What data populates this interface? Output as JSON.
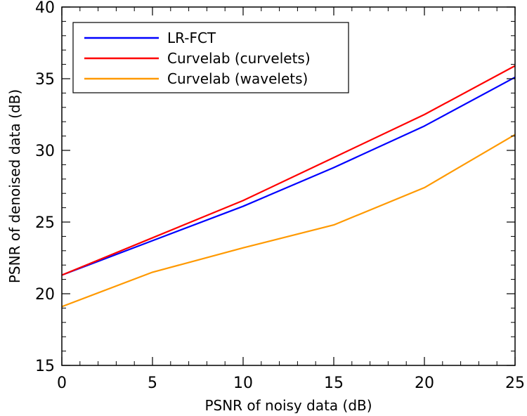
{
  "chart_data": {
    "type": "line",
    "title": "",
    "xlabel": "PSNR of noisy data (dB)",
    "ylabel": "PSNR of denoised data (dB)",
    "xlim": [
      0,
      25
    ],
    "ylim": [
      15,
      40
    ],
    "xticks": [
      0,
      5,
      10,
      15,
      20,
      25
    ],
    "yticks": [
      15,
      20,
      25,
      30,
      35,
      40
    ],
    "x": [
      0,
      5,
      10,
      15,
      20,
      25
    ],
    "series": [
      {
        "name": "LR-FCT",
        "color": "#0000ff",
        "values": [
          21.3,
          23.7,
          26.1,
          28.8,
          31.7,
          35.1
        ]
      },
      {
        "name": "Curvelab (curvelets)",
        "color": "#ff0000",
        "values": [
          21.3,
          23.9,
          26.5,
          29.5,
          32.5,
          35.9
        ]
      },
      {
        "name": "Curvelab (wavelets)",
        "color": "#ff9900",
        "values": [
          19.1,
          21.5,
          23.2,
          24.8,
          27.4,
          31.1
        ]
      }
    ],
    "legend_position": "top-left",
    "grid": false
  }
}
